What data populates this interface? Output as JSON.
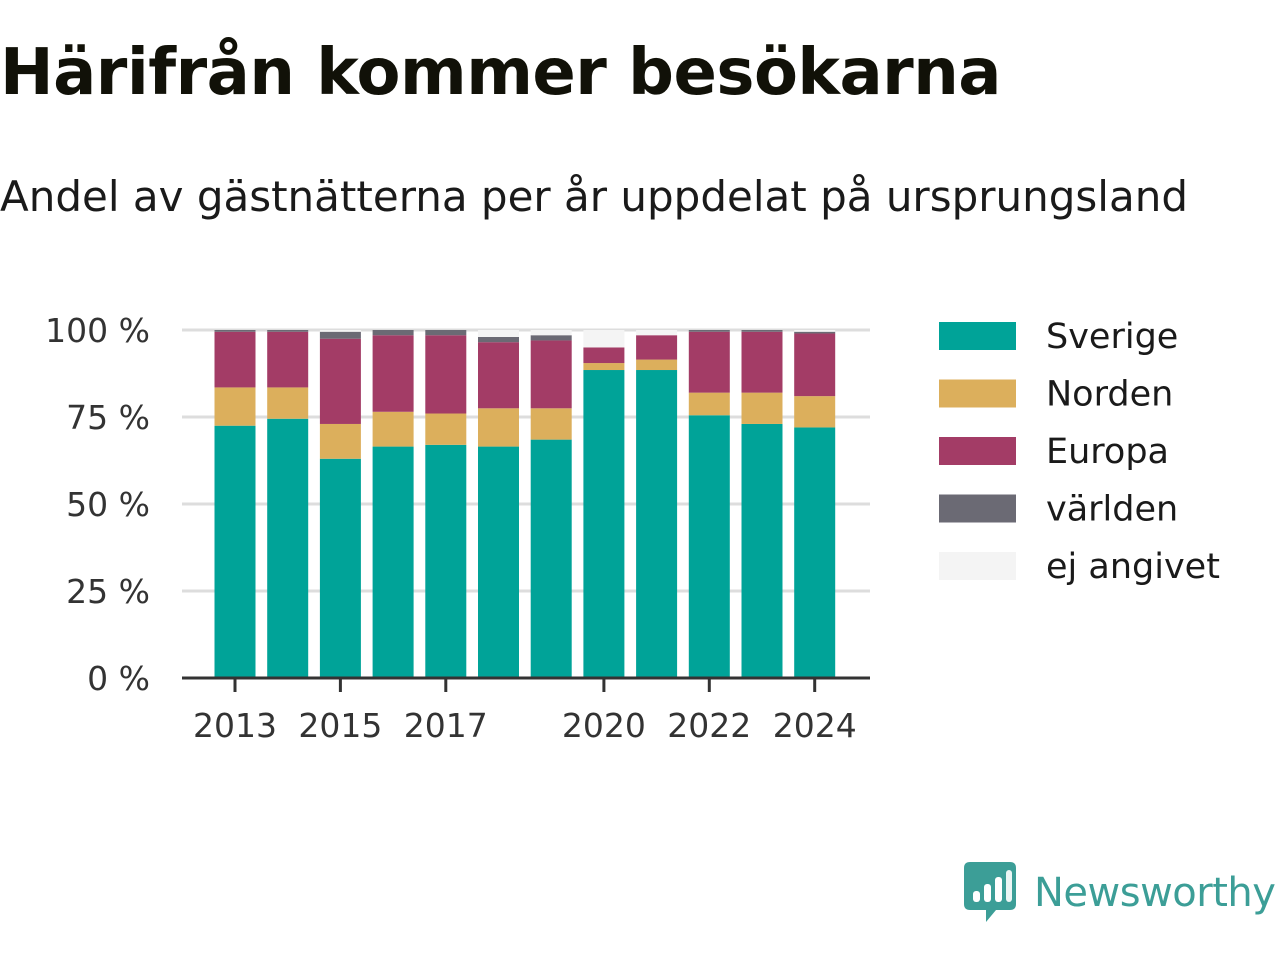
{
  "header": {
    "title": "Härifrån kommer besökarna",
    "subtitle": "Andel av gästnätterna per år uppdelat på ursprungsland"
  },
  "brand": {
    "name": "Newsworthy",
    "color": "#3c9e97",
    "icon": "newsworthy-logo-icon"
  },
  "chart_data": {
    "type": "bar",
    "stacked": true,
    "categories": [
      "2013",
      "2014",
      "2015",
      "2016",
      "2017",
      "2018",
      "2019",
      "2020",
      "2021",
      "2022",
      "2023",
      "2024"
    ],
    "x_tick_labels": [
      "2013",
      "2015",
      "2017",
      "2020",
      "2022",
      "2024"
    ],
    "y_tick_labels": [
      "0 %",
      "25 %",
      "50 %",
      "75 %",
      "100 %"
    ],
    "y_ticks": [
      0,
      25,
      50,
      75,
      100
    ],
    "ylim": [
      0,
      100
    ],
    "grid": true,
    "legend_position": "right",
    "series": [
      {
        "name": "Sverige",
        "color": "#00a398",
        "values": [
          72.5,
          74.5,
          63,
          66.5,
          67,
          66.5,
          68.5,
          88.5,
          88.5,
          75.5,
          73,
          72
        ]
      },
      {
        "name": "Norden",
        "color": "#dcaf5c",
        "values": [
          11,
          9,
          10,
          10,
          9,
          11,
          9,
          2,
          3,
          6.5,
          9,
          9
        ]
      },
      {
        "name": "Europa",
        "color": "#a33c66",
        "values": [
          16,
          16,
          24.5,
          22,
          22.5,
          19,
          19.5,
          4.5,
          7,
          17.5,
          17.5,
          18
        ]
      },
      {
        "name": "världen",
        "color": "#6b6a74",
        "values": [
          0.5,
          0.5,
          2,
          1.5,
          1.5,
          1.5,
          1.5,
          0,
          0,
          0.5,
          0.5,
          0.5
        ]
      },
      {
        "name": "ej angivet",
        "color": "#f4f4f4",
        "values": [
          0,
          0,
          0.5,
          0,
          0,
          2,
          1.5,
          5,
          1.5,
          0,
          0,
          0.5
        ]
      }
    ]
  }
}
